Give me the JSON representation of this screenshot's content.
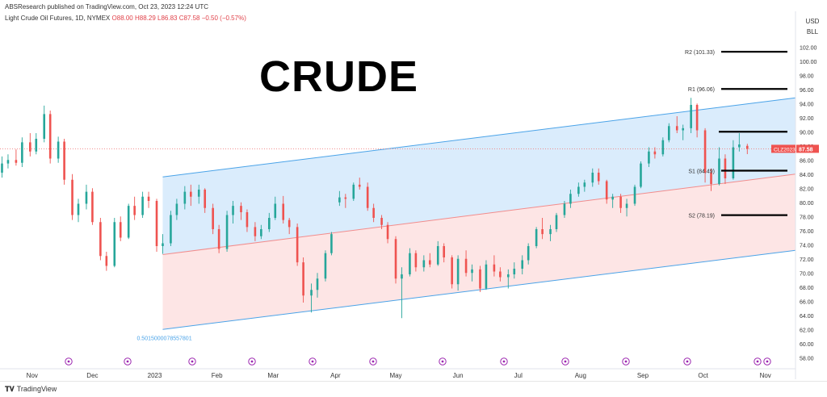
{
  "header": {
    "publisher": "ABSResearch published on TradingView.com, Oct 23, 2023 12:24 UTC",
    "symbol_name": "Light Crude Oil Futures, 1D, NYMEX",
    "ohlc": "O88.00  H88.29  L86.83  C87.58  −0.50 (−0.57%)",
    "currency": "USD",
    "unit": "BLL"
  },
  "overlay_title": "CRUDE",
  "footer": {
    "brand": "TradingView"
  },
  "colors": {
    "up": "#26a69a",
    "down": "#ef5350",
    "channel_upper_fill": "#d4e9fb",
    "channel_lower_fill": "#fde0e0",
    "channel_line": "#4aa3e8",
    "midline": "#f28c8c",
    "level_line": "#000000",
    "price_badge": "#ef5350",
    "marker": "#9c27b0"
  },
  "chart_data": {
    "type": "candlestick",
    "title": "",
    "x_labels": [
      {
        "label": "Nov",
        "date": "2022-11-01"
      },
      {
        "label": "Dec",
        "date": "2022-12-01"
      },
      {
        "label": "2023",
        "date": "2023-01-01"
      },
      {
        "label": "Feb",
        "date": "2023-02-01"
      },
      {
        "label": "Mar",
        "date": "2023-03-01"
      },
      {
        "label": "Apr",
        "date": "2023-04-01"
      },
      {
        "label": "May",
        "date": "2023-05-01"
      },
      {
        "label": "Jun",
        "date": "2023-06-01"
      },
      {
        "label": "Jul",
        "date": "2023-07-01"
      },
      {
        "label": "Aug",
        "date": "2023-08-01"
      },
      {
        "label": "Sep",
        "date": "2023-09-01"
      },
      {
        "label": "Oct",
        "date": "2023-10-01"
      },
      {
        "label": "Nov",
        "date": "2023-11-01"
      }
    ],
    "x_range": [
      "2022-10-16",
      "2023-11-16"
    ],
    "y_ticks": [
      "58.00",
      "60.00",
      "62.00",
      "64.00",
      "66.00",
      "68.00",
      "70.00",
      "72.00",
      "74.00",
      "76.00",
      "78.00",
      "80.00",
      "82.00",
      "84.00",
      "86.00",
      "88.00",
      "90.00",
      "92.00",
      "94.00",
      "96.00",
      "98.00",
      "100.00",
      "102.00"
    ],
    "ylim": [
      57,
      105
    ],
    "price_axis_side": "right",
    "last_price": {
      "value": 87.58,
      "label": "87.58",
      "symbol": "CLZ2023"
    },
    "levels": [
      {
        "label": "R2 (101.33)",
        "value": 101.33
      },
      {
        "label": "R1 (96.06)",
        "value": 96.06
      },
      {
        "label": "",
        "value": 90.0
      },
      {
        "label": "S1 (84.49)",
        "value": 84.49
      },
      {
        "label": "S2 (78.19)",
        "value": 78.19
      }
    ],
    "channel": {
      "start_date": "2023-01-05",
      "end_date": "2023-11-16",
      "upper": [
        83.6,
        94.8
      ],
      "mid": [
        72.6,
        84.0
      ],
      "lower": [
        62.0,
        73.2
      ],
      "fib_label": "0.5015000078557801"
    },
    "candles": [
      [
        "2022-10-17",
        84.2,
        86.5,
        83.5,
        85.5
      ],
      [
        "2022-10-20",
        85.5,
        86.8,
        84.8,
        86.0
      ],
      [
        "2022-10-24",
        86.0,
        87.5,
        85.2,
        85.6
      ],
      [
        "2022-10-27",
        85.6,
        89.2,
        85.0,
        88.5
      ],
      [
        "2022-10-31",
        88.5,
        89.8,
        86.5,
        87.2
      ],
      [
        "2022-11-03",
        87.2,
        89.8,
        86.8,
        89.0
      ],
      [
        "2022-11-07",
        89.0,
        93.7,
        88.5,
        92.5
      ],
      [
        "2022-11-10",
        92.5,
        93.0,
        85.5,
        86.2
      ],
      [
        "2022-11-14",
        86.2,
        89.3,
        85.6,
        88.6
      ],
      [
        "2022-11-17",
        88.6,
        89.0,
        82.5,
        83.2
      ],
      [
        "2022-11-21",
        83.2,
        84.0,
        77.5,
        78.2
      ],
      [
        "2022-11-24",
        78.2,
        80.5,
        77.2,
        79.8
      ],
      [
        "2022-11-28",
        79.8,
        82.5,
        79.0,
        81.5
      ],
      [
        "2022-12-01",
        81.5,
        82.0,
        76.8,
        77.2
      ],
      [
        "2022-12-05",
        77.2,
        77.8,
        71.8,
        72.4
      ],
      [
        "2022-12-08",
        72.4,
        73.0,
        70.3,
        71.0
      ],
      [
        "2022-12-12",
        71.0,
        77.8,
        70.8,
        77.2
      ],
      [
        "2022-12-15",
        77.2,
        78.0,
        74.5,
        75.0
      ],
      [
        "2022-12-19",
        75.0,
        79.8,
        74.8,
        79.5
      ],
      [
        "2022-12-22",
        79.5,
        80.8,
        77.5,
        78.2
      ],
      [
        "2022-12-26",
        78.2,
        81.5,
        77.8,
        80.8
      ],
      [
        "2022-12-29",
        80.8,
        81.5,
        79.2,
        80.2
      ],
      [
        "2023-01-02",
        80.2,
        80.5,
        73.0,
        73.8
      ],
      [
        "2023-01-05",
        73.8,
        75.5,
        72.7,
        74.2
      ],
      [
        "2023-01-09",
        74.2,
        78.8,
        73.8,
        78.2
      ],
      [
        "2023-01-12",
        78.2,
        80.5,
        77.5,
        79.8
      ],
      [
        "2023-01-16",
        79.8,
        82.3,
        79.0,
        81.5
      ],
      [
        "2023-01-19",
        81.5,
        82.5,
        79.5,
        80.8
      ],
      [
        "2023-01-23",
        80.8,
        82.5,
        79.8,
        81.8
      ],
      [
        "2023-01-26",
        81.8,
        82.0,
        78.5,
        79.2
      ],
      [
        "2023-01-30",
        79.2,
        79.8,
        75.5,
        76.2
      ],
      [
        "2023-02-02",
        76.2,
        76.8,
        72.8,
        73.4
      ],
      [
        "2023-02-06",
        73.4,
        78.8,
        73.0,
        78.2
      ],
      [
        "2023-02-09",
        78.2,
        80.2,
        77.0,
        79.5
      ],
      [
        "2023-02-13",
        79.5,
        80.0,
        77.5,
        78.6
      ],
      [
        "2023-02-16",
        78.6,
        79.0,
        75.8,
        76.5
      ],
      [
        "2023-02-20",
        76.5,
        77.2,
        74.5,
        75.2
      ],
      [
        "2023-02-23",
        75.2,
        76.8,
        74.8,
        76.2
      ],
      [
        "2023-02-27",
        76.2,
        78.5,
        75.8,
        77.8
      ],
      [
        "2023-03-02",
        77.8,
        80.8,
        77.5,
        79.8
      ],
      [
        "2023-03-06",
        79.8,
        80.9,
        77.0,
        77.5
      ],
      [
        "2023-03-09",
        77.5,
        77.8,
        75.5,
        76.5
      ],
      [
        "2023-03-13",
        76.5,
        77.0,
        71.0,
        71.5
      ],
      [
        "2023-03-16",
        71.5,
        72.2,
        65.8,
        66.8
      ],
      [
        "2023-03-20",
        66.8,
        68.5,
        64.4,
        67.6
      ],
      [
        "2023-03-23",
        67.6,
        70.0,
        66.5,
        69.2
      ],
      [
        "2023-03-27",
        69.2,
        73.2,
        68.8,
        72.8
      ],
      [
        "2023-03-30",
        72.8,
        75.8,
        72.5,
        75.5
      ],
      [
        "2023-04-03",
        80.0,
        81.6,
        79.5,
        80.7
      ],
      [
        "2023-04-06",
        80.7,
        81.2,
        79.2,
        80.5
      ],
      [
        "2023-04-10",
        80.5,
        82.8,
        80.2,
        82.5
      ],
      [
        "2023-04-13",
        82.5,
        83.5,
        81.8,
        82.2
      ],
      [
        "2023-04-17",
        82.2,
        82.8,
        78.8,
        79.2
      ],
      [
        "2023-04-20",
        79.2,
        79.8,
        77.2,
        77.8
      ],
      [
        "2023-04-24",
        77.8,
        78.2,
        76.2,
        76.8
      ],
      [
        "2023-04-27",
        76.8,
        77.2,
        74.2,
        74.8
      ],
      [
        "2023-05-01",
        74.8,
        75.2,
        68.5,
        69.2
      ],
      [
        "2023-05-04",
        69.2,
        70.8,
        63.6,
        69.8
      ],
      [
        "2023-05-08",
        69.8,
        73.5,
        69.5,
        72.8
      ],
      [
        "2023-05-11",
        72.8,
        73.2,
        70.2,
        70.8
      ],
      [
        "2023-05-15",
        70.8,
        72.5,
        70.2,
        71.8
      ],
      [
        "2023-05-18",
        71.8,
        72.8,
        70.8,
        71.2
      ],
      [
        "2023-05-22",
        71.2,
        74.5,
        71.0,
        73.8
      ],
      [
        "2023-05-25",
        73.8,
        74.2,
        71.5,
        72.2
      ],
      [
        "2023-05-29",
        72.2,
        72.5,
        67.8,
        68.4
      ],
      [
        "2023-06-01",
        68.4,
        72.5,
        67.5,
        72.0
      ],
      [
        "2023-06-05",
        72.0,
        73.2,
        69.5,
        70.0
      ],
      [
        "2023-06-08",
        70.0,
        71.2,
        68.8,
        70.5
      ],
      [
        "2023-06-12",
        70.5,
        71.0,
        67.3,
        67.8
      ],
      [
        "2023-06-15",
        67.8,
        71.8,
        67.6,
        71.2
      ],
      [
        "2023-06-19",
        71.2,
        72.5,
        69.5,
        70.2
      ],
      [
        "2023-06-22",
        70.2,
        70.8,
        68.8,
        69.4
      ],
      [
        "2023-06-26",
        69.4,
        70.5,
        67.8,
        69.8
      ],
      [
        "2023-06-29",
        69.8,
        71.5,
        69.2,
        70.6
      ],
      [
        "2023-07-03",
        70.6,
        72.5,
        69.8,
        71.8
      ],
      [
        "2023-07-06",
        71.8,
        74.2,
        71.2,
        73.8
      ],
      [
        "2023-07-10",
        73.8,
        76.5,
        73.5,
        76.2
      ],
      [
        "2023-07-13",
        76.2,
        77.8,
        74.8,
        75.5
      ],
      [
        "2023-07-17",
        75.5,
        76.8,
        74.5,
        76.2
      ],
      [
        "2023-07-20",
        76.2,
        78.5,
        75.8,
        78.2
      ],
      [
        "2023-07-24",
        78.2,
        80.2,
        77.8,
        79.8
      ],
      [
        "2023-07-27",
        79.8,
        81.8,
        79.2,
        81.2
      ],
      [
        "2023-07-31",
        81.2,
        82.8,
        80.8,
        82.2
      ],
      [
        "2023-08-03",
        82.2,
        83.2,
        81.5,
        82.8
      ],
      [
        "2023-08-07",
        82.8,
        84.8,
        82.2,
        84.2
      ],
      [
        "2023-08-10",
        84.2,
        84.8,
        82.5,
        83.0
      ],
      [
        "2023-08-14",
        83.0,
        83.2,
        79.8,
        80.4
      ],
      [
        "2023-08-17",
        80.4,
        81.2,
        79.2,
        80.8
      ],
      [
        "2023-08-21",
        80.8,
        81.2,
        78.5,
        79.2
      ],
      [
        "2023-08-24",
        79.2,
        80.5,
        78.0,
        79.8
      ],
      [
        "2023-08-28",
        79.8,
        82.5,
        79.5,
        82.2
      ],
      [
        "2023-08-31",
        82.2,
        85.8,
        82.0,
        85.5
      ],
      [
        "2023-09-04",
        85.5,
        87.8,
        85.0,
        87.2
      ],
      [
        "2023-09-07",
        87.2,
        87.8,
        86.2,
        86.8
      ],
      [
        "2023-09-11",
        86.8,
        89.2,
        86.5,
        88.8
      ],
      [
        "2023-09-14",
        88.8,
        91.2,
        88.5,
        90.8
      ],
      [
        "2023-09-18",
        90.8,
        92.2,
        89.8,
        90.2
      ],
      [
        "2023-09-21",
        90.2,
        91.0,
        88.8,
        90.5
      ],
      [
        "2023-09-25",
        90.5,
        94.8,
        89.8,
        93.8
      ],
      [
        "2023-09-28",
        93.8,
        94.0,
        89.2,
        90.2
      ],
      [
        "2023-10-02",
        90.2,
        90.5,
        82.8,
        84.2
      ],
      [
        "2023-10-05",
        84.2,
        84.8,
        81.6,
        82.6
      ],
      [
        "2023-10-09",
        82.6,
        87.8,
        82.4,
        86.2
      ],
      [
        "2023-10-12",
        86.2,
        86.8,
        82.6,
        83.4
      ],
      [
        "2023-10-16",
        83.4,
        88.8,
        83.2,
        87.8
      ],
      [
        "2023-10-19",
        87.8,
        89.8,
        87.2,
        88.2
      ],
      [
        "2023-10-23",
        88.0,
        88.29,
        86.83,
        87.58
      ]
    ]
  }
}
